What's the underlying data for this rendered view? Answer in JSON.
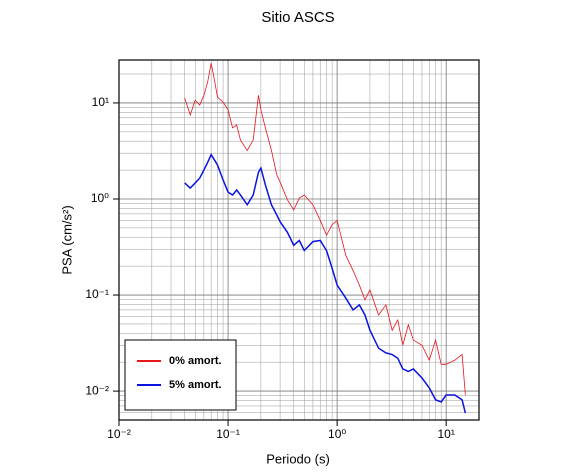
{
  "chart_data": {
    "type": "line",
    "title": "Sitio ASCS",
    "xlabel": "Periodo (s)",
    "ylabel": "PSA (cm/s²)",
    "xscale": "log",
    "yscale": "log",
    "grid": true,
    "legend": "lower left",
    "xlim": [
      0.01,
      20
    ],
    "ylim": [
      0.005,
      28
    ],
    "xticks": [
      {
        "value": 0.01,
        "label": "10⁻²"
      },
      {
        "value": 0.1,
        "label": "10⁻¹"
      },
      {
        "value": 1,
        "label": "10⁰"
      },
      {
        "value": 10,
        "label": "10¹"
      }
    ],
    "yticks": [
      {
        "value": 0.01,
        "label": "10⁻²"
      },
      {
        "value": 0.1,
        "label": "10⁻¹"
      },
      {
        "value": 1,
        "label": "10⁰"
      },
      {
        "value": 10,
        "label": "10¹"
      }
    ],
    "x": [
      0.04,
      0.045,
      0.05,
      0.055,
      0.06,
      0.065,
      0.07,
      0.075,
      0.08,
      0.09,
      0.1,
      0.11,
      0.12,
      0.13,
      0.15,
      0.17,
      0.19,
      0.2,
      0.22,
      0.25,
      0.28,
      0.3,
      0.35,
      0.4,
      0.45,
      0.5,
      0.6,
      0.7,
      0.8,
      0.9,
      1.0,
      1.2,
      1.4,
      1.6,
      1.8,
      2.0,
      2.4,
      2.8,
      3.2,
      3.6,
      4.0,
      4.5,
      5,
      6,
      7,
      8,
      9,
      10,
      12,
      14,
      15
    ],
    "series": [
      {
        "name": "0% amort.",
        "color": "#e8151b",
        "width": 0.8,
        "values": [
          11.3,
          7.5,
          10.7,
          9.5,
          12,
          16.5,
          26,
          17.4,
          11.5,
          10.2,
          8.5,
          5.5,
          5.9,
          4.1,
          3.2,
          4.1,
          12,
          8.5,
          5.5,
          3.2,
          1.78,
          1.5,
          0.98,
          0.77,
          1.02,
          1.1,
          0.87,
          0.6,
          0.42,
          0.54,
          0.6,
          0.26,
          0.18,
          0.127,
          0.089,
          0.113,
          0.062,
          0.079,
          0.043,
          0.055,
          0.03,
          0.049,
          0.034,
          0.03,
          0.021,
          0.034,
          0.019,
          0.019,
          0.021,
          0.024,
          0.0091
        ]
      },
      {
        "name": "5% amort.",
        "color": "#0a14e0",
        "width": 1.5,
        "values": [
          1.47,
          1.3,
          1.47,
          1.65,
          2.0,
          2.4,
          2.9,
          2.55,
          2.26,
          1.58,
          1.18,
          1.1,
          1.24,
          1.1,
          0.87,
          1.1,
          1.9,
          2.1,
          1.4,
          0.87,
          0.68,
          0.58,
          0.45,
          0.33,
          0.37,
          0.29,
          0.36,
          0.37,
          0.29,
          0.19,
          0.127,
          0.093,
          0.07,
          0.079,
          0.062,
          0.043,
          0.028,
          0.025,
          0.024,
          0.022,
          0.017,
          0.016,
          0.017,
          0.0137,
          0.0108,
          0.0081,
          0.0077,
          0.0091,
          0.0091,
          0.0081,
          0.0059
        ]
      }
    ]
  }
}
